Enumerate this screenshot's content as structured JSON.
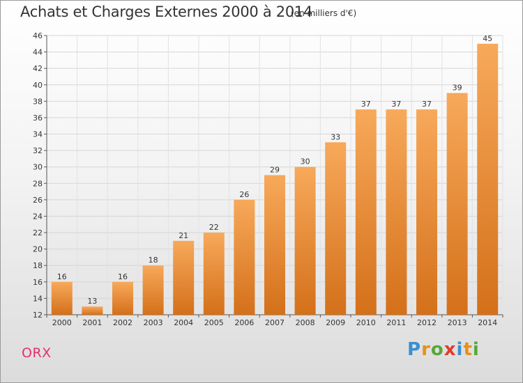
{
  "chart_data": {
    "type": "bar",
    "title": "Achats et Charges Externes 2000 à 2014",
    "subtitle": "(en milliers d'€)",
    "categories": [
      "2000",
      "2001",
      "2002",
      "2003",
      "2004",
      "2005",
      "2006",
      "2007",
      "2008",
      "2009",
      "2010",
      "2011",
      "2012",
      "2013",
      "2014"
    ],
    "values": [
      16,
      13,
      16,
      18,
      21,
      22,
      26,
      29,
      30,
      33,
      37,
      37,
      37,
      39,
      45
    ],
    "ylim": [
      12,
      46
    ],
    "yticks": [
      12,
      14,
      16,
      18,
      20,
      22,
      24,
      26,
      28,
      30,
      32,
      34,
      36,
      38,
      40,
      42,
      44,
      46
    ],
    "grid": true,
    "bar_color_top": "#f7a95a",
    "bar_color_bottom": "#d4701a"
  },
  "footer": {
    "place": "ORX",
    "logo_letters": [
      "P",
      "r",
      "o",
      "x",
      "i",
      "t",
      "i"
    ],
    "logo_colors": [
      "#3b8fd1",
      "#e8901a",
      "#56a83a",
      "#e43a2c",
      "#3b8fd1",
      "#e8901a",
      "#56a83a"
    ]
  }
}
